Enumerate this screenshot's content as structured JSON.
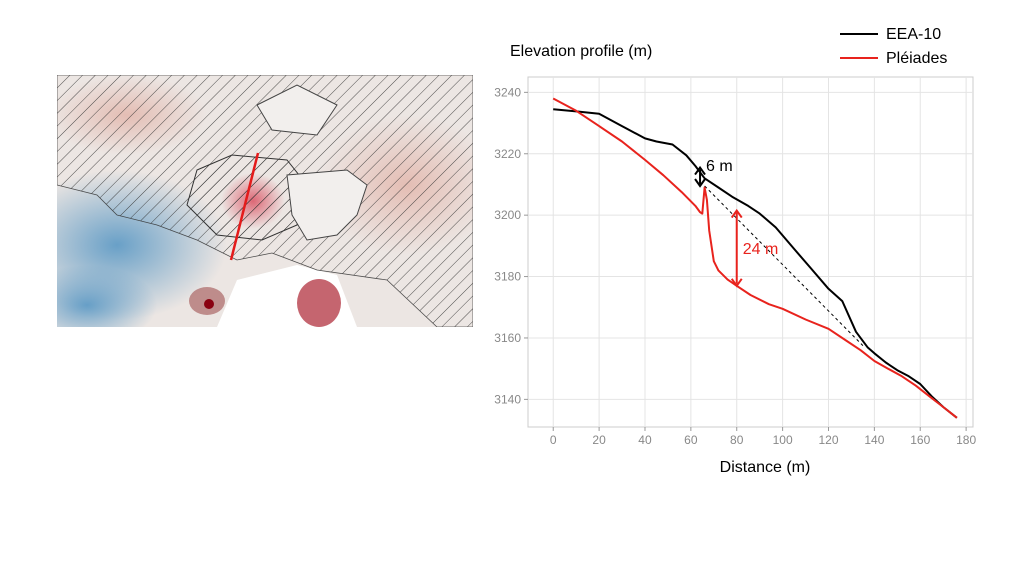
{
  "chart_data": {
    "type": "line",
    "title": "Elevation profile (m)",
    "xlabel": "Distance (m)",
    "ylabel": "",
    "xlim": [
      -11,
      183
    ],
    "ylim": [
      3131,
      3245
    ],
    "xticks": [
      0,
      20,
      40,
      60,
      80,
      100,
      120,
      140,
      160,
      180
    ],
    "yticks": [
      3140,
      3160,
      3180,
      3200,
      3220,
      3240
    ],
    "grid": true,
    "legend_position": "top-right",
    "series": [
      {
        "name": "EEA-10",
        "color": "#000000",
        "x": [
          0,
          10,
          20,
          30,
          40,
          45,
          52,
          58,
          62,
          66,
          72,
          78,
          85,
          90,
          97,
          105,
          112,
          120,
          126,
          132,
          137,
          140,
          145,
          150,
          155,
          160,
          165,
          170,
          176
        ],
        "y": [
          3234.5,
          3233.8,
          3233,
          3229,
          3225,
          3224,
          3223,
          3219.5,
          3216,
          3212,
          3209,
          3206,
          3203,
          3200.5,
          3196,
          3189,
          3183,
          3176,
          3172,
          3162,
          3157,
          3155,
          3152,
          3149.5,
          3147.5,
          3145,
          3141,
          3137.5,
          3134
        ]
      },
      {
        "name": "Pléiades",
        "color": "#e8231d",
        "x": [
          0,
          10,
          20,
          30,
          40,
          48,
          56,
          62,
          64,
          65,
          66,
          67,
          68,
          70,
          72,
          76,
          80,
          86,
          94,
          100,
          110,
          120,
          128,
          134,
          140,
          146,
          152,
          158,
          164,
          170,
          176
        ],
        "y": [
          3238,
          3234,
          3229,
          3224,
          3218,
          3213,
          3207.5,
          3203,
          3201,
          3200.5,
          3209,
          3205,
          3195,
          3185,
          3182,
          3179,
          3177,
          3174,
          3171,
          3169.5,
          3166,
          3163,
          3159,
          3156,
          3152.5,
          3150,
          3147.5,
          3144.5,
          3141,
          3137.5,
          3134
        ]
      }
    ],
    "reference_line": {
      "style": "dashed",
      "color": "#000000",
      "x": [
        66,
        135
      ],
      "y": [
        3209.5,
        3157.5
      ]
    },
    "annotations": [
      {
        "text": "6 m",
        "color": "#000000",
        "x": 64,
        "y_from": 3209.5,
        "y_to": 3215.5
      },
      {
        "text": "24 m",
        "color": "#e8231d",
        "x": 80,
        "y_from": 3177,
        "y_to": 3201.5
      }
    ]
  },
  "map": {
    "profile_line_color": "#e41b1b",
    "hatch_color": "#333333"
  }
}
